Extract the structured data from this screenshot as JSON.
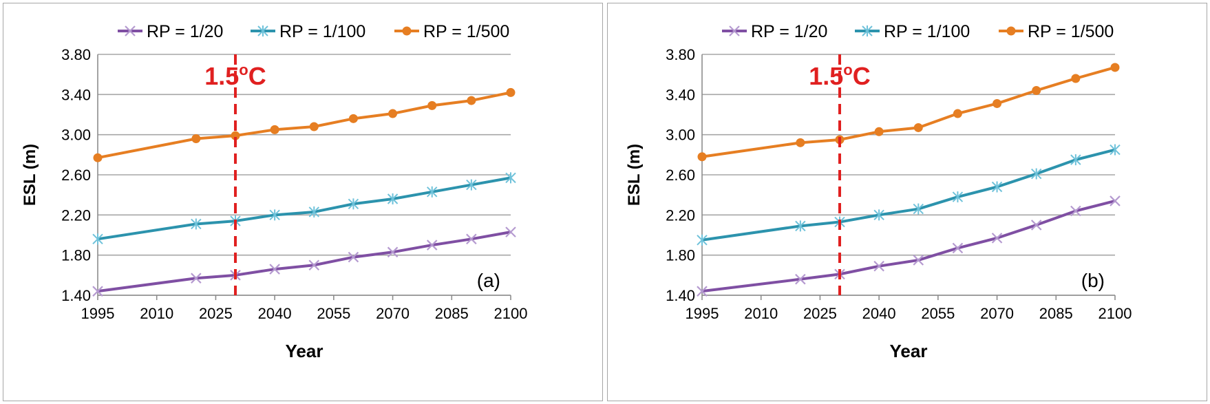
{
  "chart_data": [
    {
      "type": "line",
      "panel_label": "(a)",
      "xlabel": "Year",
      "ylabel": "ESL (m)",
      "x_ticks": [
        1995,
        2010,
        2025,
        2040,
        2055,
        2070,
        2085,
        2100
      ],
      "y_ticks": [
        "1.40",
        "1.80",
        "2.20",
        "2.60",
        "3.00",
        "3.40",
        "3.80"
      ],
      "xlim": [
        1995,
        2100
      ],
      "ylim": [
        1.4,
        3.8
      ],
      "grid": "horizontal",
      "legend_position": "top",
      "x": [
        1995,
        2020,
        2030,
        2040,
        2050,
        2060,
        2070,
        2080,
        2090,
        2100
      ],
      "series": [
        {
          "name": "RP = 1/20",
          "color": "#7f4fa3",
          "marker": "x",
          "values": [
            1.44,
            1.57,
            1.6,
            1.66,
            1.7,
            1.78,
            1.83,
            1.9,
            1.96,
            2.03
          ]
        },
        {
          "name": "RP = 1/100",
          "color": "#2c93ad",
          "marker": "asterisk",
          "values": [
            1.96,
            2.11,
            2.14,
            2.2,
            2.23,
            2.31,
            2.36,
            2.43,
            2.5,
            2.57
          ]
        },
        {
          "name": "RP = 1/500",
          "color": "#e67e22",
          "marker": "circle",
          "values": [
            2.77,
            2.96,
            2.99,
            3.05,
            3.08,
            3.16,
            3.21,
            3.29,
            3.34,
            3.42
          ]
        }
      ],
      "annotation": {
        "text": "1.5",
        "superscript": "o",
        "unit": "C",
        "x": 2030,
        "color": "#e02020"
      }
    },
    {
      "type": "line",
      "panel_label": "(b)",
      "xlabel": "Year",
      "ylabel": "ESL (m)",
      "x_ticks": [
        1995,
        2010,
        2025,
        2040,
        2055,
        2070,
        2085,
        2100
      ],
      "y_ticks": [
        "1.40",
        "1.80",
        "2.20",
        "2.60",
        "3.00",
        "3.40",
        "3.80"
      ],
      "xlim": [
        1995,
        2100
      ],
      "ylim": [
        1.4,
        3.8
      ],
      "grid": "horizontal",
      "legend_position": "top",
      "x": [
        1995,
        2020,
        2030,
        2040,
        2050,
        2060,
        2070,
        2080,
        2090,
        2100
      ],
      "series": [
        {
          "name": "RP = 1/20",
          "color": "#7f4fa3",
          "marker": "x",
          "values": [
            1.44,
            1.56,
            1.61,
            1.69,
            1.75,
            1.87,
            1.97,
            2.1,
            2.24,
            2.34
          ]
        },
        {
          "name": "RP = 1/100",
          "color": "#2c93ad",
          "marker": "asterisk",
          "values": [
            1.95,
            2.09,
            2.13,
            2.2,
            2.26,
            2.38,
            2.48,
            2.61,
            2.75,
            2.85
          ]
        },
        {
          "name": "RP = 1/500",
          "color": "#e67e22",
          "marker": "circle",
          "values": [
            2.78,
            2.92,
            2.95,
            3.03,
            3.07,
            3.21,
            3.31,
            3.44,
            3.56,
            3.67
          ]
        }
      ],
      "annotation": {
        "text": "1.5",
        "superscript": "o",
        "unit": "C",
        "x": 2030,
        "color": "#e02020"
      }
    }
  ]
}
